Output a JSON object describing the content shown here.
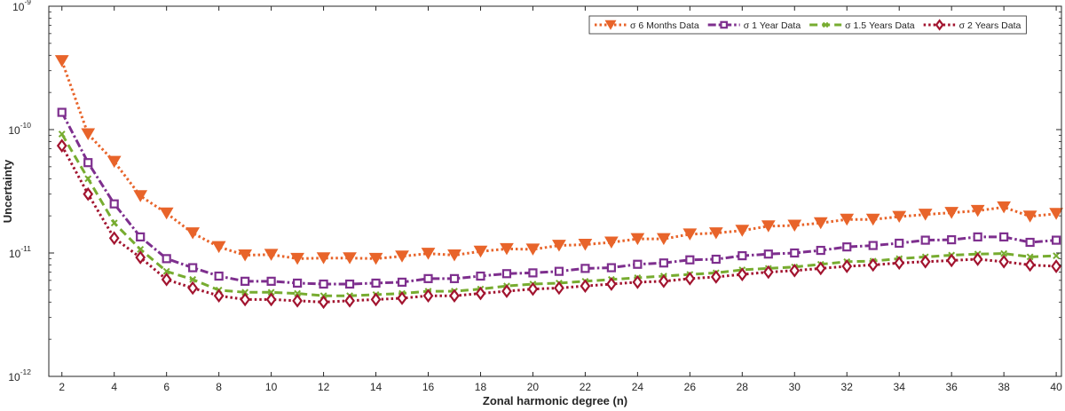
{
  "chart_data": {
    "type": "line",
    "yscale": "log",
    "xlabel": "Zonal harmonic degree (n)",
    "ylabel": "Uncertainty",
    "xlim": [
      1.5,
      40.2
    ],
    "ylim": [
      1e-12,
      1e-09
    ],
    "xticks": [
      2,
      4,
      6,
      8,
      10,
      12,
      14,
      16,
      18,
      20,
      22,
      24,
      26,
      28,
      30,
      32,
      34,
      36,
      38,
      40
    ],
    "yticks": [
      {
        "value": 1e-12,
        "base": "10",
        "exp": "-12"
      },
      {
        "value": 1e-11,
        "base": "10",
        "exp": "-11"
      },
      {
        "value": 1e-10,
        "base": "10",
        "exp": "-10"
      },
      {
        "value": 1e-09,
        "base": "10",
        "exp": "-9"
      }
    ],
    "x": [
      2,
      3,
      4,
      5,
      6,
      7,
      8,
      9,
      10,
      11,
      12,
      13,
      14,
      15,
      16,
      17,
      18,
      19,
      20,
      21,
      22,
      23,
      24,
      25,
      26,
      27,
      28,
      29,
      30,
      31,
      32,
      33,
      34,
      35,
      36,
      37,
      38,
      39,
      40
    ],
    "legend_position": "top-right",
    "series": [
      {
        "name": "σ 6 Months Data",
        "color": "#E8642A",
        "dash": "dotted",
        "marker": "triangle-down",
        "values": [
          3.6e-10,
          9.2e-11,
          5.5e-11,
          2.9e-11,
          2.1e-11,
          1.45e-11,
          1.12e-11,
          9.6e-12,
          9.7e-12,
          9e-12,
          9.1e-12,
          9.1e-12,
          9e-12,
          9.4e-12,
          9.9e-12,
          9.6e-12,
          1.03e-11,
          1.08e-11,
          1.07e-11,
          1.15e-11,
          1.17e-11,
          1.22e-11,
          1.3e-11,
          1.3e-11,
          1.42e-11,
          1.45e-11,
          1.52e-11,
          1.65e-11,
          1.67e-11,
          1.75e-11,
          1.87e-11,
          1.87e-11,
          1.97e-11,
          2.05e-11,
          2.12e-11,
          2.2e-11,
          2.35e-11,
          1.98e-11,
          2.08e-11
        ]
      },
      {
        "name": "σ 1 Year Data",
        "color": "#7E2F8E",
        "dash": "dashdot",
        "marker": "square",
        "values": [
          1.38e-10,
          5.4e-11,
          2.5e-11,
          1.35e-11,
          9e-12,
          7.6e-12,
          6.5e-12,
          5.9e-12,
          5.9e-12,
          5.7e-12,
          5.6e-12,
          5.6e-12,
          5.7e-12,
          5.8e-12,
          6.2e-12,
          6.2e-12,
          6.5e-12,
          6.8e-12,
          6.9e-12,
          7.1e-12,
          7.5e-12,
          7.6e-12,
          8.1e-12,
          8.3e-12,
          8.8e-12,
          8.9e-12,
          9.5e-12,
          9.8e-12,
          1e-11,
          1.05e-11,
          1.12e-11,
          1.15e-11,
          1.2e-11,
          1.27e-11,
          1.28e-11,
          1.35e-11,
          1.35e-11,
          1.22e-11,
          1.27e-11
        ]
      },
      {
        "name": "σ 1.5 Years Data",
        "color": "#77AC30",
        "dash": "dashed",
        "marker": "x",
        "values": [
          9.2e-11,
          4e-11,
          1.75e-11,
          1.07e-11,
          7.1e-12,
          6.1e-12,
          5e-12,
          4.8e-12,
          4.8e-12,
          4.7e-12,
          4.5e-12,
          4.5e-12,
          4.6e-12,
          4.7e-12,
          4.9e-12,
          4.9e-12,
          5.1e-12,
          5.4e-12,
          5.6e-12,
          5.7e-12,
          5.9e-12,
          6.1e-12,
          6.3e-12,
          6.5e-12,
          6.7e-12,
          6.9e-12,
          7.3e-12,
          7.5e-12,
          7.7e-12,
          8.1e-12,
          8.5e-12,
          8.6e-12,
          9e-12,
          9.3e-12,
          9.6e-12,
          9.8e-12,
          9.9e-12,
          9.3e-12,
          9.5e-12
        ]
      },
      {
        "name": "σ 2 Years Data",
        "color": "#A2142F",
        "dash": "dotted",
        "marker": "diamond",
        "values": [
          7.4e-11,
          3e-11,
          1.32e-11,
          9.2e-12,
          6.1e-12,
          5.2e-12,
          4.5e-12,
          4.2e-12,
          4.2e-12,
          4.1e-12,
          4e-12,
          4.1e-12,
          4.2e-12,
          4.3e-12,
          4.5e-12,
          4.5e-12,
          4.7e-12,
          4.9e-12,
          5.1e-12,
          5.2e-12,
          5.4e-12,
          5.6e-12,
          5.8e-12,
          5.9e-12,
          6.2e-12,
          6.4e-12,
          6.7e-12,
          7e-12,
          7.2e-12,
          7.5e-12,
          7.8e-12,
          8e-12,
          8.3e-12,
          8.5e-12,
          8.7e-12,
          8.9e-12,
          8.5e-12,
          8e-12,
          7.8e-12
        ]
      }
    ]
  }
}
